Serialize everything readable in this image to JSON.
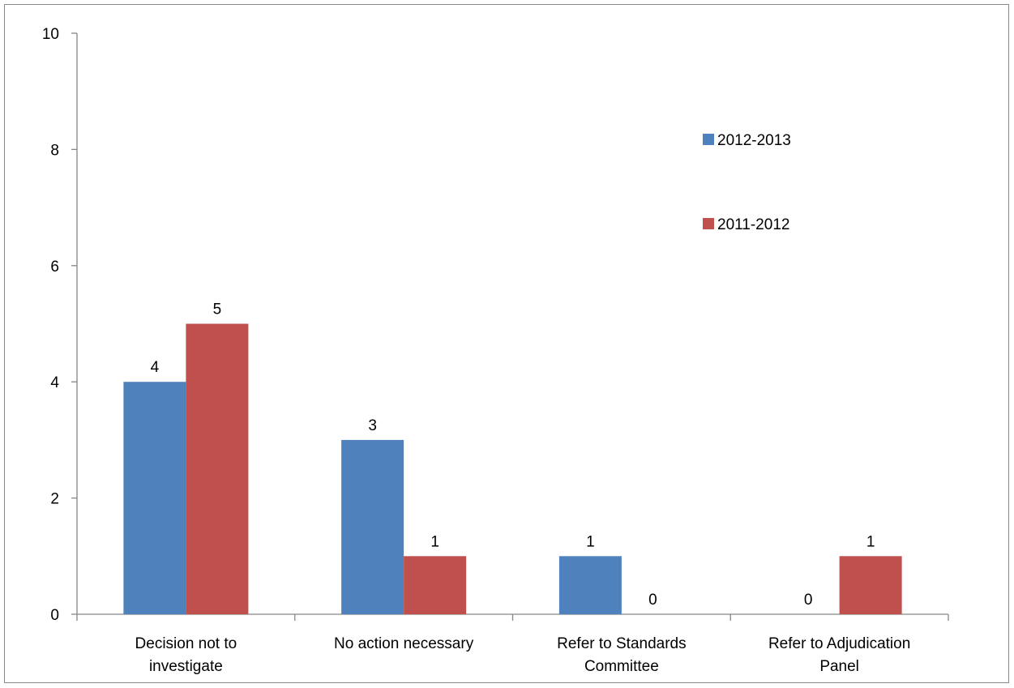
{
  "chart_data": {
    "type": "bar",
    "title": "",
    "xlabel": "",
    "ylabel": "",
    "categories": [
      [
        "Decision not to",
        "investigate"
      ],
      [
        "No action necessary"
      ],
      [
        "Refer to Standards",
        "Committee"
      ],
      [
        "Refer to Adjudication",
        "Panel"
      ]
    ],
    "series": [
      {
        "name": "2012-2013",
        "color": "#4F81BD",
        "values": [
          4,
          3,
          1,
          0
        ]
      },
      {
        "name": "2011-2012",
        "color": "#C0504D",
        "values": [
          5,
          1,
          0,
          1
        ]
      }
    ],
    "ylim": [
      0,
      10
    ],
    "yticks": [
      0,
      2,
      4,
      6,
      8,
      10
    ],
    "data_labels": true,
    "grid": false,
    "legend_position": "top-right"
  }
}
